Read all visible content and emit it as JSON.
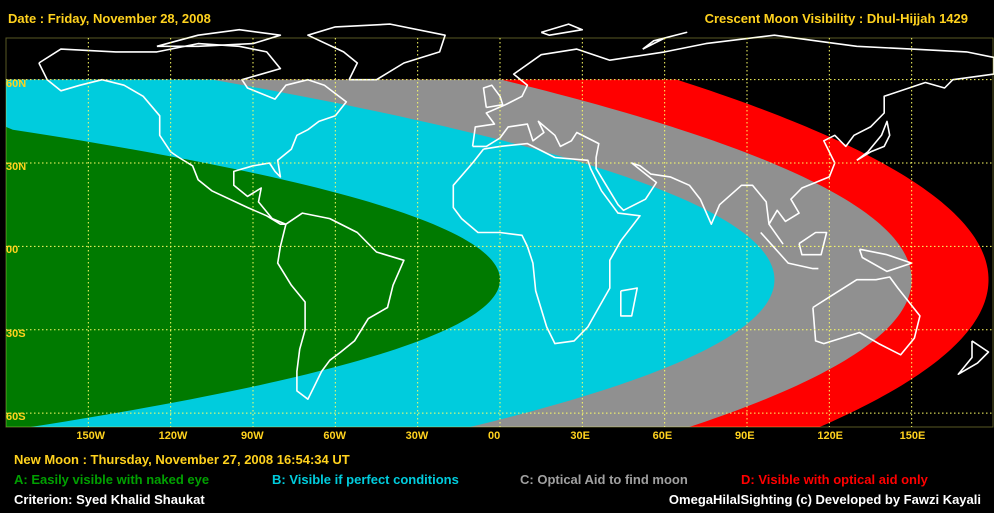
{
  "header": {
    "date": "Date : Friday, November 28, 2008",
    "title": "Crescent Moon Visibility : Dhul-Hijjah  1429"
  },
  "map": {
    "lat_labels": [
      "60N",
      "30N",
      "00",
      "30S",
      "60S"
    ],
    "lon_labels": [
      "150W",
      "120W",
      "90W",
      "60W",
      "30W",
      "00",
      "30E",
      "60E",
      "90E",
      "120E",
      "150E"
    ],
    "zone_colors": {
      "A": "#007a00",
      "B": "#00ccdd",
      "C": "#909090",
      "D": "#ff0000"
    },
    "grid_color": "#ffff66",
    "coast_color": "#ffffff"
  },
  "footer": {
    "new_moon": "New Moon : Thursday, November 27, 2008  16:54:34  UT",
    "legend": [
      {
        "label": "A: Easily visible with naked eye",
        "color": "#00a000"
      },
      {
        "label": "B: Visible if perfect conditions",
        "color": "#00ccdd"
      },
      {
        "label": "C: Optical Aid to find moon",
        "color": "#a0a0a0"
      },
      {
        "label": "D: Visible with optical aid only",
        "color": "#ff0000"
      }
    ],
    "criterion": "Criterion: Syed Khalid Shaukat",
    "credit": "OmegaHilalSighting  (c)  Developed by Fawzi Kayali"
  }
}
